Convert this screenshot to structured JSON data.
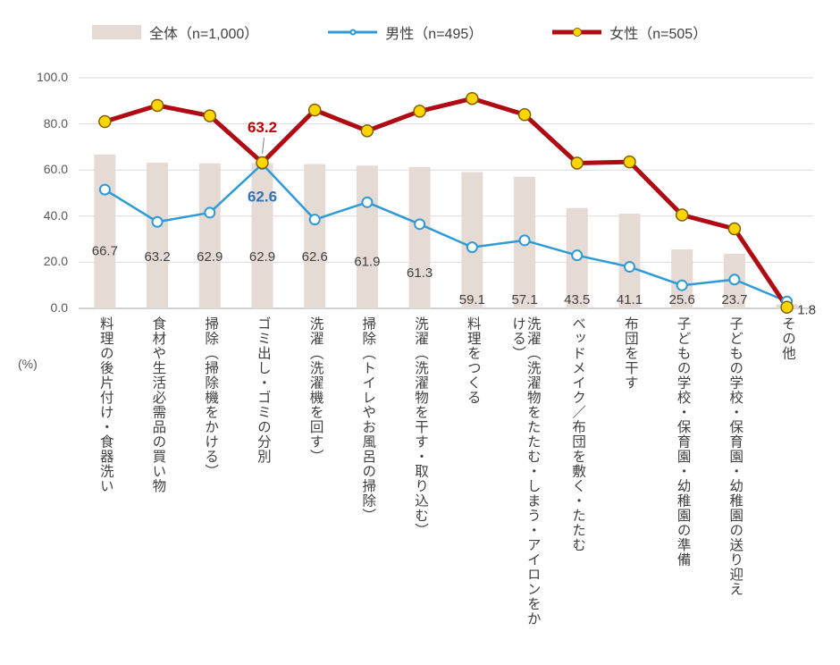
{
  "chart_data": {
    "type": "bar+line",
    "title": "",
    "ylabel": "(%)",
    "ylim": [
      0,
      100
    ],
    "ytick_step": 20,
    "grid": true,
    "legend_position": "top",
    "categories": [
      "料理の後片付け・食器洗い",
      "食材や生活必需品の買い物",
      "掃除（掃除機をかける）",
      "ゴミ出し・ゴミの分別",
      "洗濯（洗濯機を回す）",
      "掃除（トイレやお風呂の掃除）",
      "洗濯（洗濯物を干す・取り込む）",
      "料理をつくる",
      "洗濯（洗濯物をたたむ・しまう・アイロンをかける）",
      "ベッドメイク／布団を敷く・たたむ",
      "布団を干す",
      "子どもの学校・保育園・幼稚園の準備",
      "子どもの学校・保育園・幼稚園の送り迎え",
      "その他"
    ],
    "series": [
      {
        "key": "zentai",
        "name": "全体（n=1,000）",
        "type": "bar",
        "color": "#e6dad4",
        "values": [
          66.7,
          63.2,
          62.9,
          62.9,
          62.6,
          61.9,
          61.3,
          59.1,
          57.1,
          43.5,
          41.1,
          25.6,
          23.7,
          1.8
        ],
        "labels_visible": true
      },
      {
        "key": "male",
        "name": "男性（n=495）",
        "type": "line",
        "color": "#2e9bd6",
        "line_width": 2.5,
        "marker_fill": "#ffffff",
        "marker_stroke": "#2e9bd6",
        "marker_stroke_width": 2,
        "marker_radius": 5.5,
        "values": [
          51.5,
          37.5,
          41.5,
          62.6,
          38.5,
          46.0,
          36.5,
          26.5,
          29.5,
          23.0,
          18.0,
          10.0,
          12.5,
          3.0
        ]
      },
      {
        "key": "female",
        "name": "女性（n=505）",
        "type": "line",
        "color": "#b00b13",
        "line_width": 5,
        "marker_fill": "#ffd500",
        "marker_stroke": "#7f6000",
        "marker_stroke_width": 1.5,
        "marker_radius": 6.5,
        "values": [
          81.0,
          88.0,
          83.5,
          63.2,
          86.0,
          77.0,
          85.5,
          91.0,
          84.0,
          63.0,
          63.5,
          40.5,
          34.5,
          0.5
        ]
      }
    ],
    "bar_label_y_values": [
      23,
      20.5,
      20.5,
      20.5,
      20.5,
      18.5,
      13.5,
      2,
      2,
      2,
      2,
      2,
      2,
      -2.5
    ],
    "bar_value_label_color": "#404040",
    "gridline_color": "#d9d9d9",
    "axis_line_color": "#a6a6a6",
    "tick_label_color": "#595959",
    "annotations": [
      {
        "text": "63.2",
        "series": "女性（n=505）",
        "category_index": 3,
        "position": "above",
        "color": "#c00000"
      },
      {
        "text": "62.6",
        "series": "男性（n=495）",
        "category_index": 3,
        "position": "below",
        "color": "#2e75b6"
      }
    ]
  }
}
